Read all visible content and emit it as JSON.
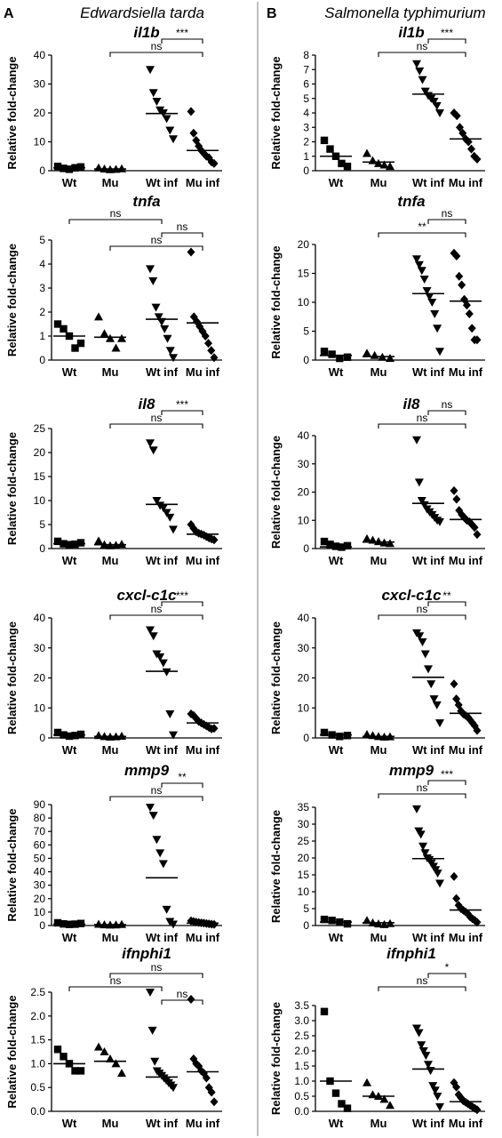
{
  "panels": [
    {
      "letter": "A",
      "organism": "Edwardsiella tarda"
    },
    {
      "letter": "B",
      "organism": "Salmonella typhimurium"
    }
  ],
  "chart_data": [
    {
      "type": "scatter",
      "panel": "A",
      "gene": "il1b",
      "ylabel": "Relative fold-change",
      "categories": [
        "Wt",
        "Mu",
        "Wt inf",
        "Mu inf"
      ],
      "markers": [
        "square",
        "triangle-up",
        "triangle-down",
        "diamond"
      ],
      "ylim": [
        0,
        40
      ],
      "yticks": [
        0,
        10,
        20,
        30,
        40
      ],
      "points": [
        [
          1.5,
          0.8,
          0.5,
          1.0,
          1.3
        ],
        [
          1.0,
          0.6,
          0.4,
          0.5,
          0.7
        ],
        [
          35,
          27,
          24,
          21,
          20,
          18,
          14,
          11
        ],
        [
          20.5,
          13,
          10.5,
          8.5,
          7,
          6,
          5,
          4.5,
          3,
          2.5
        ]
      ],
      "medians": [
        1.0,
        0.6,
        19.8,
        7.0
      ],
      "brackets": [
        {
          "from": 2,
          "to": 3,
          "label": "***"
        },
        {
          "from": 1,
          "to": 3,
          "label": "ns"
        }
      ]
    },
    {
      "type": "scatter",
      "panel": "A",
      "gene": "tnfa",
      "ylabel": "Relative fold-change",
      "categories": [
        "Wt",
        "Mu",
        "Wt inf",
        "Mu inf"
      ],
      "markers": [
        "square",
        "triangle-up",
        "triangle-down",
        "diamond"
      ],
      "ylim": [
        0,
        5
      ],
      "yticks": [
        0,
        1,
        2,
        3,
        4,
        5
      ],
      "points": [
        [
          1.5,
          1.3,
          1.0,
          0.5,
          0.7
        ],
        [
          1.8,
          1.1,
          0.9,
          0.5,
          0.9
        ],
        [
          3.8,
          3.3,
          2.2,
          1.8,
          1.6,
          1.3,
          0.9,
          0.4,
          0.1
        ],
        [
          4.5,
          1.8,
          1.6,
          1.4,
          1.2,
          1.0,
          0.7,
          0.4,
          0.1
        ]
      ],
      "medians": [
        1.0,
        0.95,
        1.7,
        1.55
      ],
      "brackets": [
        {
          "from": 0,
          "to": 2,
          "label": "ns"
        },
        {
          "from": 2,
          "to": 3,
          "label": "ns"
        },
        {
          "from": 1,
          "to": 3,
          "label": "ns"
        }
      ]
    },
    {
      "type": "scatter",
      "panel": "A",
      "gene": "il8",
      "ylabel": "Relative fold-change",
      "categories": [
        "Wt",
        "Mu",
        "Wt inf",
        "Mu inf"
      ],
      "markers": [
        "square",
        "triangle-up",
        "triangle-down",
        "diamond"
      ],
      "ylim": [
        0,
        25
      ],
      "yticks": [
        0,
        5,
        10,
        15,
        20,
        25
      ],
      "points": [
        [
          1.5,
          1.0,
          0.8,
          0.9,
          1.2
        ],
        [
          1.6,
          0.8,
          0.6,
          0.7,
          0.9
        ],
        [
          22,
          20.5,
          10,
          9,
          8.5,
          7.5,
          6.5,
          4.0
        ],
        [
          5.0,
          4.2,
          3.5,
          3.2,
          3.0,
          2.8,
          2.5,
          2.2,
          2.0,
          1.8
        ]
      ],
      "medians": [
        1.0,
        0.8,
        9.2,
        3.0
      ],
      "brackets": [
        {
          "from": 2,
          "to": 3,
          "label": "***"
        },
        {
          "from": 1,
          "to": 3,
          "label": "ns"
        }
      ]
    },
    {
      "type": "scatter",
      "panel": "A",
      "gene": "cxcl-c1c",
      "ylabel": "Relative fold-change",
      "categories": [
        "Wt",
        "Mu",
        "Wt inf",
        "Mu inf"
      ],
      "markers": [
        "square",
        "triangle-up",
        "triangle-down",
        "diamond"
      ],
      "ylim": [
        0,
        40
      ],
      "yticks": [
        0,
        10,
        20,
        30,
        40
      ],
      "points": [
        [
          1.8,
          1.0,
          0.6,
          0.8,
          1.2
        ],
        [
          0.8,
          0.5,
          0.3,
          0.4,
          0.6
        ],
        [
          36,
          34,
          28,
          27,
          25,
          22,
          8,
          1
        ],
        [
          8,
          7.5,
          6.5,
          5.5,
          5.0,
          4.5,
          4.0,
          3.5,
          3.0,
          3.2
        ]
      ],
      "medians": [
        1.0,
        0.5,
        22.2,
        5.0
      ],
      "brackets": [
        {
          "from": 2,
          "to": 3,
          "label": "***"
        },
        {
          "from": 1,
          "to": 3,
          "label": "ns"
        }
      ]
    },
    {
      "type": "scatter",
      "panel": "A",
      "gene": "mmp9",
      "ylabel": "Relative fold-change",
      "categories": [
        "Wt",
        "Mu",
        "Wt inf",
        "Mu inf"
      ],
      "markers": [
        "square",
        "triangle-up",
        "triangle-down",
        "diamond"
      ],
      "ylim": [
        0,
        90
      ],
      "yticks": [
        0,
        10,
        20,
        30,
        40,
        50,
        60,
        70,
        80,
        90
      ],
      "points": [
        [
          2.0,
          1.2,
          0.8,
          1.0,
          1.5
        ],
        [
          1.0,
          0.6,
          0.4,
          0.5,
          0.8
        ],
        [
          88,
          82,
          64,
          54,
          46,
          12,
          3,
          1
        ],
        [
          3.5,
          3.0,
          2.6,
          2.2,
          2.0,
          1.8,
          1.5,
          1.2,
          1.0,
          0.8
        ]
      ],
      "medians": [
        1.0,
        0.6,
        35.5,
        1.8
      ],
      "brackets": [
        {
          "from": 2,
          "to": 3,
          "label": "**"
        },
        {
          "from": 1,
          "to": 3,
          "label": "ns"
        }
      ]
    },
    {
      "type": "scatter",
      "panel": "A",
      "gene": "ifnphi1",
      "ylabel": "Relative fold-change",
      "categories": [
        "Wt",
        "Mu",
        "Wt inf",
        "Mu inf"
      ],
      "markers": [
        "square",
        "triangle-up",
        "triangle-down",
        "diamond"
      ],
      "ylim": [
        0,
        2.5
      ],
      "yticks": [
        "0.0",
        "0.5",
        "1.0",
        "1.5",
        "2.0",
        "2.5"
      ],
      "points": [
        [
          1.3,
          1.15,
          1.0,
          0.85,
          0.85
        ],
        [
          1.35,
          1.25,
          1.1,
          1.0,
          0.8
        ],
        [
          2.5,
          1.7,
          1.05,
          0.85,
          0.8,
          0.75,
          0.7,
          0.65,
          0.6,
          0.55,
          0.5
        ],
        [
          2.35,
          1.1,
          1.0,
          0.95,
          0.85,
          0.8,
          0.7,
          0.5,
          0.4,
          0.2
        ]
      ],
      "medians": [
        1.0,
        1.05,
        0.72,
        0.83
      ],
      "brackets": [
        {
          "from": 1,
          "to": 3,
          "label": "ns"
        },
        {
          "from": 0,
          "to": 2,
          "label": "ns"
        },
        {
          "from": 2,
          "to": 3,
          "label": "ns"
        }
      ]
    },
    {
      "type": "scatter",
      "panel": "B",
      "gene": "il1b",
      "ylabel": "Relative fold-change",
      "categories": [
        "Wt",
        "Mu",
        "Wt inf",
        "Mu inf"
      ],
      "markers": [
        "square",
        "triangle-up",
        "triangle-down",
        "diamond"
      ],
      "ylim": [
        0,
        8
      ],
      "yticks": [
        0,
        1,
        2,
        3,
        4,
        5,
        6,
        7,
        8
      ],
      "points": [
        [
          2.1,
          1.5,
          1.0,
          0.5,
          0.3
        ],
        [
          1.2,
          0.7,
          0.5,
          0.4,
          0.3
        ],
        [
          7.4,
          6.9,
          6.3,
          5.5,
          5.2,
          5.0,
          4.8,
          4.5,
          4.0
        ],
        [
          4.0,
          3.8,
          3.0,
          2.6,
          2.2,
          2.0,
          1.5,
          1.0,
          0.8
        ]
      ],
      "medians": [
        1.0,
        0.6,
        5.3,
        2.2
      ],
      "brackets": [
        {
          "from": 2,
          "to": 3,
          "label": "***"
        },
        {
          "from": 1,
          "to": 3,
          "label": "ns"
        }
      ]
    },
    {
      "type": "scatter",
      "panel": "B",
      "gene": "tnfa",
      "ylabel": "Relative fold-change",
      "categories": [
        "Wt",
        "Mu",
        "Wt inf",
        "Mu inf"
      ],
      "markers": [
        "square",
        "triangle-up",
        "triangle-down",
        "diamond"
      ],
      "ylim": [
        0,
        20
      ],
      "yticks": [
        0,
        5,
        10,
        15,
        20
      ],
      "points": [
        [
          1.5,
          1.0,
          0.3,
          0.5
        ],
        [
          1.2,
          0.8,
          0.5,
          0.3
        ],
        [
          17.5,
          16.5,
          15.5,
          14,
          12,
          11,
          10,
          8,
          5.5,
          1.5
        ],
        [
          18.5,
          18,
          14.5,
          13,
          10.5,
          9.5,
          8,
          5.5,
          3.5,
          3.5
        ]
      ],
      "medians": [
        0.8,
        0.6,
        11.5,
        10.2
      ],
      "brackets": [
        {
          "from": 2,
          "to": 3,
          "label": "ns"
        },
        {
          "from": 1,
          "to": 3,
          "label": "**"
        }
      ]
    },
    {
      "type": "scatter",
      "panel": "B",
      "gene": "il8",
      "ylabel": "Relative fold-change",
      "categories": [
        "Wt",
        "Mu",
        "Wt inf",
        "Mu inf"
      ],
      "markers": [
        "square",
        "triangle-up",
        "triangle-down",
        "diamond"
      ],
      "ylim": [
        0,
        40
      ],
      "yticks": [
        0,
        10,
        20,
        30,
        40
      ],
      "points": [
        [
          2.5,
          1.5,
          0.8,
          0.5,
          1.0
        ],
        [
          3.5,
          3.0,
          2.5,
          2.0,
          1.8
        ],
        [
          38.5,
          23.5,
          17,
          15.5,
          14,
          13,
          12,
          11,
          10,
          9.5
        ],
        [
          20.5,
          17.5,
          13.5,
          12,
          11,
          10,
          9.5,
          8.5,
          7.5,
          5
        ]
      ],
      "medians": [
        0.6,
        2.3,
        16.0,
        10.3
      ],
      "brackets": [
        {
          "from": 2,
          "to": 3,
          "label": "ns"
        },
        {
          "from": 1,
          "to": 3,
          "label": "ns"
        }
      ]
    },
    {
      "type": "scatter",
      "panel": "B",
      "gene": "cxcl-c1c",
      "ylabel": "Relative fold-change",
      "categories": [
        "Wt",
        "Mu",
        "Wt inf",
        "Mu inf"
      ],
      "markers": [
        "square",
        "triangle-up",
        "triangle-down",
        "diamond"
      ],
      "ylim": [
        0,
        40
      ],
      "yticks": [
        0,
        10,
        20,
        30,
        40
      ],
      "points": [
        [
          1.8,
          1.0,
          0.5,
          0.8
        ],
        [
          1.2,
          0.8,
          0.5,
          0.3,
          0.4
        ],
        [
          35,
          34,
          32,
          28,
          23,
          18,
          13,
          11,
          5
        ],
        [
          18,
          13,
          11,
          9,
          8,
          7.5,
          7,
          6,
          5,
          4,
          2.5
        ]
      ],
      "medians": [
        1.0,
        0.5,
        20.2,
        8.2
      ],
      "brackets": [
        {
          "from": 2,
          "to": 3,
          "label": "**"
        },
        {
          "from": 1,
          "to": 3,
          "label": "ns"
        }
      ]
    },
    {
      "type": "scatter",
      "panel": "B",
      "gene": "mmp9",
      "ylabel": "Relative fold-change",
      "categories": [
        "Wt",
        "Mu",
        "Wt inf",
        "Mu inf"
      ],
      "markers": [
        "square",
        "triangle-up",
        "triangle-down",
        "diamond"
      ],
      "ylim": [
        0,
        35
      ],
      "yticks": [
        0,
        5,
        10,
        15,
        20,
        25,
        30,
        35
      ],
      "points": [
        [
          1.8,
          1.5,
          1.0,
          0.5
        ],
        [
          1.5,
          0.8,
          0.5,
          0.3,
          0.6
        ],
        [
          34.5,
          28,
          27,
          23.5,
          21.5,
          20,
          19.5,
          18.5,
          17.5,
          16.5,
          15.5,
          12.5
        ],
        [
          14.5,
          8,
          6,
          5,
          4.5,
          4,
          3.5,
          2.5,
          2.0,
          1.5,
          1.0
        ]
      ],
      "medians": [
        1.0,
        0.8,
        19.8,
        4.6
      ],
      "brackets": [
        {
          "from": 2,
          "to": 3,
          "label": "***"
        },
        {
          "from": 1,
          "to": 3,
          "label": "ns"
        }
      ]
    },
    {
      "type": "scatter",
      "panel": "B",
      "gene": "ifnphi1",
      "ylabel": "Relative fold-change",
      "categories": [
        "Wt",
        "Mu",
        "Wt inf",
        "Mu inf"
      ],
      "markers": [
        "square",
        "triangle-up",
        "triangle-down",
        "diamond"
      ],
      "ylim": [
        0,
        3.5
      ],
      "yticks": [
        "0.0",
        "0.5",
        "1.0",
        "1.5",
        "2.0",
        "2.5",
        "3.0",
        "3.5"
      ],
      "points": [
        [
          3.3,
          1.0,
          0.6,
          0.25,
          0.1
        ],
        [
          0.95,
          0.55,
          0.5,
          0.4,
          0.2
        ],
        [
          2.75,
          2.6,
          2.2,
          2.0,
          1.85,
          1.55,
          1.35,
          0.85,
          0.7,
          0.5,
          0.15
        ],
        [
          0.95,
          0.8,
          0.55,
          0.45,
          0.35,
          0.3,
          0.25,
          0.2,
          0.15,
          0.1,
          0.05
        ]
      ],
      "medians": [
        1.0,
        0.5,
        1.4,
        0.32
      ],
      "brackets": [
        {
          "from": 2,
          "to": 3,
          "label": "*"
        },
        {
          "from": 1,
          "to": 3,
          "label": "ns"
        }
      ]
    }
  ]
}
